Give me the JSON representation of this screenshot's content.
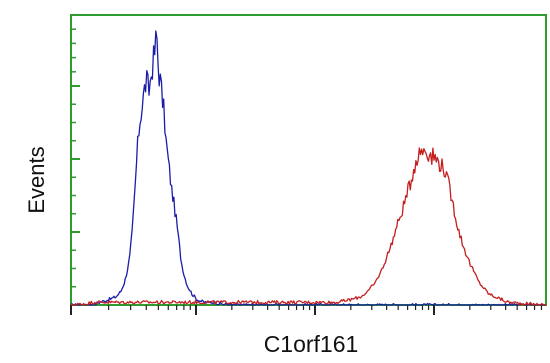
{
  "chart_data": {
    "type": "line",
    "title": "",
    "xlabel": "C1orf161",
    "ylabel": "Events",
    "x_scale": "log",
    "x_ticks": [],
    "y_ticks": [],
    "grid": false,
    "legend": "none",
    "frame_color": "#2e9b2e",
    "series": [
      {
        "color": "#1c1ca8",
        "x": [
          0.0,
          0.04,
          0.06,
          0.08,
          0.095,
          0.105,
          0.112,
          0.118,
          0.124,
          0.129,
          0.134,
          0.139,
          0.144,
          0.149,
          0.154,
          0.159,
          0.164,
          0.168,
          0.172,
          0.176,
          0.18,
          0.184,
          0.188,
          0.192,
          0.196,
          0.2,
          0.204,
          0.208,
          0.212,
          0.216,
          0.22,
          0.224,
          0.228,
          0.232,
          0.238,
          0.245,
          0.255,
          0.265,
          0.28,
          0.3,
          0.34,
          1.0
        ],
        "y": [
          0,
          0,
          1,
          2,
          3,
          5,
          8,
          12,
          18,
          27,
          40,
          55,
          66,
          72,
          78,
          82,
          78,
          83,
          88,
          92,
          100,
          86,
          82,
          76,
          70,
          60,
          54,
          48,
          42,
          38,
          33,
          28,
          22,
          16,
          11,
          7,
          4,
          2,
          1,
          1,
          0,
          0
        ]
      },
      {
        "color": "#c41e1e",
        "x": [
          0.0,
          0.05,
          0.1,
          0.2,
          0.3,
          0.4,
          0.5,
          0.56,
          0.59,
          0.61,
          0.625,
          0.64,
          0.655,
          0.67,
          0.685,
          0.7,
          0.715,
          0.725,
          0.735,
          0.745,
          0.755,
          0.765,
          0.775,
          0.785,
          0.795,
          0.805,
          0.815,
          0.825,
          0.84,
          0.86,
          0.88,
          0.92,
          1.0
        ],
        "y": [
          0,
          1,
          1,
          1,
          1,
          1,
          1,
          1,
          2,
          3,
          5,
          8,
          13,
          20,
          28,
          36,
          45,
          52,
          56,
          57,
          55,
          54,
          52,
          50,
          44,
          36,
          28,
          22,
          15,
          8,
          4,
          1,
          0
        ]
      }
    ]
  }
}
